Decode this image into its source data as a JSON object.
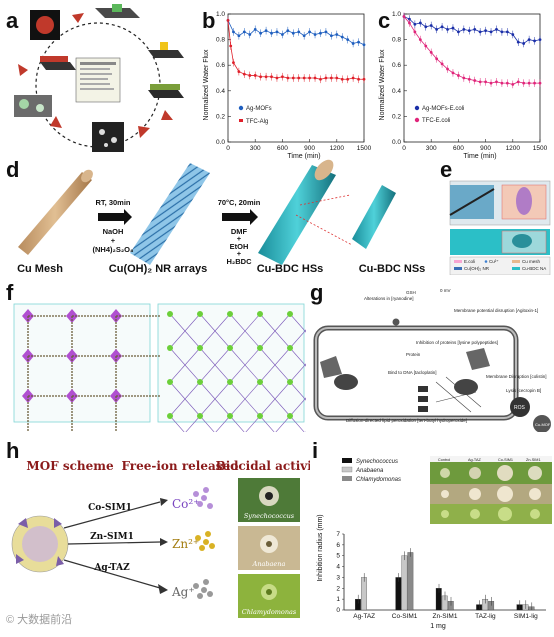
{
  "labels": {
    "a": "a",
    "b": "b",
    "c": "c",
    "d": "d",
    "e": "e",
    "f": "f",
    "g": "g",
    "h": "h",
    "i": "i"
  },
  "panel_b": {
    "ylabel": "Normalized Water Flux",
    "xlabel": "Time (min)",
    "legend": [
      "Ag-MOFs",
      "TFC-Alg"
    ]
  },
  "panel_c": {
    "ylabel": "Normalized Water Flux",
    "xlabel": "Time (min)",
    "legend": [
      "Ag-MOFs-E.coli",
      "TFC-E.coli"
    ]
  },
  "panel_d": {
    "labels": [
      "Cu Mesh",
      "Cu(OH)₂ NR arrays",
      "Cu-BDC HSs",
      "Cu-BDC  NSs"
    ],
    "step1": [
      "RT, 30min",
      "NaOH",
      "+",
      "(NH4)₂S₂O₈"
    ],
    "step2": [
      "70°C, 20min",
      "DMF",
      "+",
      "EtOH",
      "+",
      "H₂BDC"
    ]
  },
  "panel_e": {
    "legend": [
      "E.coli",
      "Cu²⁺",
      "Cu mesh",
      "Cu(OH)₂ NR",
      "Cu-BDC NA"
    ]
  },
  "panel_g": {
    "texts": [
      "Alterations in [ryanodine]",
      "GSH",
      "0 mV",
      "Membrane potential disruption [Agitoxin-1]",
      "Inhibition of proteins [lysine polypeptides]",
      "Protein",
      "Bind to DNA [tacloplatin]",
      "Membrane Disruption [colistin]",
      "Diffusion-directed lipid peroxidation [tert-butyl hydroperoxide]",
      "Lysis [cecropin B]",
      "ROS",
      "Cu-MOF"
    ]
  },
  "panel_h": {
    "headers": [
      "MOF scheme",
      "Free-ion released",
      "Biocidal activity"
    ],
    "mofs": [
      "Co-SIM1",
      "Zn-SIM1",
      "Ag-TAZ"
    ],
    "ions": [
      "Co²⁺",
      "Zn²⁺",
      "Ag⁺"
    ],
    "organisms": [
      "Synechococcus",
      "Anabaena",
      "Chlamydomonas"
    ]
  },
  "panel_i_header": [
    "Control",
    "Ag-TAZ",
    "Co-SIM1",
    "Zn-SIM1"
  ],
  "colors": {
    "ag_blue": "#1f5fbf",
    "tfc_red": "#e0202a",
    "magenta": "#e0257a",
    "navy": "#1b2fa8"
  },
  "chart_data": [
    {
      "type": "line",
      "panel": "b",
      "xlabel": "Time (min)",
      "ylabel": "Normalized Water Flux",
      "xlim": [
        0,
        1500
      ],
      "ylim": [
        0,
        1.0
      ],
      "xticks": [
        0,
        300,
        600,
        900,
        1200,
        1500
      ],
      "yticks": [
        0,
        0.2,
        0.4,
        0.6,
        0.8,
        1.0
      ],
      "series": [
        {
          "name": "Ag-MOFs",
          "color": "#1f5fbf",
          "x": [
            0,
            60,
            120,
            180,
            240,
            300,
            360,
            420,
            480,
            540,
            600,
            660,
            720,
            780,
            840,
            900,
            960,
            1020,
            1080,
            1140,
            1200,
            1260,
            1320,
            1380,
            1440,
            1500
          ],
          "y": [
            0.95,
            0.86,
            0.83,
            0.86,
            0.84,
            0.88,
            0.85,
            0.87,
            0.85,
            0.86,
            0.84,
            0.87,
            0.85,
            0.86,
            0.83,
            0.86,
            0.84,
            0.85,
            0.86,
            0.83,
            0.84,
            0.82,
            0.8,
            0.77,
            0.78,
            0.76
          ]
        },
        {
          "name": "TFC-Alg",
          "color": "#e0202a",
          "x": [
            0,
            30,
            60,
            120,
            180,
            240,
            300,
            360,
            420,
            480,
            540,
            600,
            660,
            720,
            780,
            840,
            900,
            960,
            1020,
            1080,
            1140,
            1200,
            1260,
            1320,
            1380,
            1440,
            1500
          ],
          "y": [
            0.95,
            0.75,
            0.62,
            0.55,
            0.53,
            0.52,
            0.52,
            0.51,
            0.51,
            0.51,
            0.5,
            0.51,
            0.5,
            0.5,
            0.5,
            0.5,
            0.5,
            0.5,
            0.49,
            0.5,
            0.5,
            0.5,
            0.49,
            0.49,
            0.5,
            0.49,
            0.49
          ]
        }
      ]
    },
    {
      "type": "line",
      "panel": "c",
      "xlabel": "Time (min)",
      "ylabel": "Normalized Water Flux",
      "xlim": [
        0,
        1500
      ],
      "ylim": [
        0,
        1.0
      ],
      "xticks": [
        0,
        300,
        600,
        900,
        1200,
        1500
      ],
      "yticks": [
        0,
        0.2,
        0.4,
        0.6,
        0.8,
        1.0
      ],
      "series": [
        {
          "name": "Ag-MOFs-E.coli",
          "color": "#1b2fa8",
          "x": [
            0,
            60,
            120,
            180,
            240,
            300,
            360,
            420,
            480,
            540,
            600,
            660,
            720,
            780,
            840,
            900,
            960,
            1020,
            1080,
            1140,
            1200,
            1260,
            1320,
            1380,
            1440,
            1500
          ],
          "y": [
            0.98,
            0.96,
            0.92,
            0.93,
            0.9,
            0.91,
            0.88,
            0.9,
            0.88,
            0.89,
            0.86,
            0.88,
            0.87,
            0.88,
            0.86,
            0.87,
            0.86,
            0.88,
            0.86,
            0.86,
            0.84,
            0.78,
            0.77,
            0.8,
            0.79,
            0.8
          ]
        },
        {
          "name": "TFC-E.coli",
          "color": "#e0257a",
          "x": [
            0,
            60,
            120,
            180,
            240,
            300,
            360,
            420,
            480,
            540,
            600,
            660,
            720,
            780,
            840,
            900,
            960,
            1020,
            1080,
            1140,
            1200,
            1260,
            1320,
            1380,
            1440,
            1500
          ],
          "y": [
            0.98,
            0.93,
            0.86,
            0.8,
            0.75,
            0.7,
            0.65,
            0.61,
            0.57,
            0.54,
            0.52,
            0.5,
            0.49,
            0.48,
            0.47,
            0.47,
            0.46,
            0.47,
            0.46,
            0.46,
            0.45,
            0.47,
            0.46,
            0.46,
            0.46,
            0.46
          ]
        }
      ]
    },
    {
      "type": "bar",
      "panel": "i",
      "ylabel": "Inhibition radius (mm)",
      "xlabel": "1 mg",
      "ylim": [
        0,
        7
      ],
      "yticks": [
        0,
        1,
        2,
        3,
        4,
        5,
        6,
        7
      ],
      "categories": [
        "Ag-TAZ",
        "Co-SIM1",
        "Zn-SIM1",
        "TAZ-lig",
        "SIM1-lig"
      ],
      "series": [
        {
          "name": "Synechococcus",
          "color": "#111111",
          "values": [
            1.0,
            3.0,
            2.0,
            0.5,
            0.5
          ]
        },
        {
          "name": "Anabaena",
          "color": "#c8c8c8",
          "values": [
            3.0,
            5.0,
            1.3,
            1.0,
            0.5
          ]
        },
        {
          "name": "Chlamydomonas",
          "color": "#8a8a8a",
          "values": [
            0.0,
            5.3,
            0.8,
            0.8,
            0.3
          ]
        }
      ]
    }
  ],
  "watermark": "© 大数据前沿"
}
